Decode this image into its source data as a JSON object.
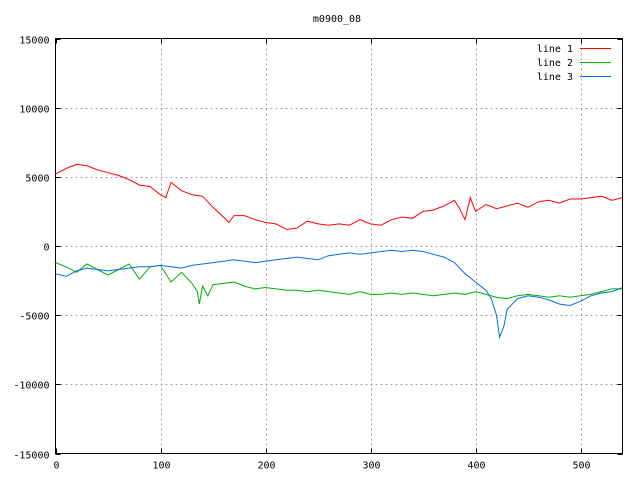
{
  "chart_data": {
    "type": "line",
    "title": "m0900_08",
    "xlabel": "",
    "ylabel": "",
    "xlim": [
      0,
      540
    ],
    "ylim": [
      -15000,
      15000
    ],
    "xticks": [
      0,
      100,
      200,
      300,
      400,
      500
    ],
    "yticks": [
      -15000,
      -10000,
      -5000,
      0,
      5000,
      10000,
      15000
    ],
    "grid": true,
    "legend_position": "top-right",
    "series": [
      {
        "name": "line 1",
        "color": "#ff0000",
        "x": [
          0,
          10,
          20,
          30,
          40,
          50,
          60,
          70,
          80,
          90,
          100,
          105,
          110,
          120,
          130,
          140,
          150,
          160,
          165,
          170,
          180,
          190,
          200,
          210,
          220,
          230,
          240,
          250,
          260,
          270,
          280,
          290,
          300,
          310,
          320,
          330,
          340,
          350,
          360,
          370,
          380,
          385,
          390,
          395,
          400,
          410,
          420,
          430,
          440,
          450,
          460,
          470,
          480,
          490,
          500,
          510,
          520,
          530,
          540
        ],
        "y": [
          5200,
          5600,
          5900,
          5800,
          5500,
          5300,
          5100,
          4800,
          4400,
          4300,
          3700,
          3500,
          4600,
          4000,
          3700,
          3600,
          2800,
          2100,
          1700,
          2200,
          2200,
          1900,
          1700,
          1600,
          1200,
          1300,
          1800,
          1600,
          1500,
          1600,
          1500,
          1900,
          1600,
          1500,
          1900,
          2100,
          2000,
          2500,
          2600,
          2900,
          3300,
          2700,
          1900,
          3500,
          2500,
          3000,
          2700,
          2900,
          3100,
          2800,
          3200,
          3300,
          3100,
          3400,
          3400,
          3500,
          3600,
          3300,
          3500
        ]
      },
      {
        "name": "line 2",
        "color": "#00b000",
        "x": [
          0,
          10,
          20,
          30,
          40,
          50,
          60,
          70,
          80,
          90,
          100,
          110,
          120,
          130,
          135,
          137,
          140,
          145,
          150,
          160,
          170,
          180,
          190,
          200,
          210,
          220,
          230,
          240,
          250,
          260,
          270,
          280,
          290,
          300,
          310,
          320,
          330,
          340,
          350,
          360,
          370,
          380,
          390,
          400,
          410,
          420,
          430,
          440,
          450,
          460,
          470,
          480,
          490,
          500,
          510,
          520,
          530,
          540
        ],
        "y": [
          -1200,
          -1500,
          -1900,
          -1300,
          -1700,
          -2100,
          -1700,
          -1300,
          -2400,
          -1500,
          -1400,
          -2600,
          -1900,
          -2700,
          -3300,
          -4200,
          -2900,
          -3600,
          -2800,
          -2700,
          -2600,
          -2900,
          -3100,
          -3000,
          -3100,
          -3200,
          -3200,
          -3300,
          -3200,
          -3300,
          -3400,
          -3500,
          -3300,
          -3500,
          -3500,
          -3400,
          -3500,
          -3400,
          -3500,
          -3600,
          -3500,
          -3400,
          -3500,
          -3300,
          -3500,
          -3700,
          -3800,
          -3600,
          -3500,
          -3600,
          -3700,
          -3600,
          -3700,
          -3600,
          -3500,
          -3300,
          -3100,
          -3100
        ]
      },
      {
        "name": "line 3",
        "color": "#0070e0",
        "x": [
          0,
          10,
          20,
          30,
          40,
          50,
          60,
          70,
          80,
          90,
          100,
          110,
          120,
          130,
          140,
          150,
          160,
          170,
          180,
          190,
          200,
          210,
          220,
          230,
          240,
          250,
          260,
          270,
          280,
          290,
          300,
          310,
          320,
          330,
          340,
          350,
          360,
          370,
          380,
          390,
          400,
          410,
          415,
          420,
          423,
          427,
          430,
          440,
          450,
          460,
          470,
          480,
          490,
          500,
          510,
          520,
          530,
          540
        ],
        "y": [
          -2000,
          -2200,
          -1800,
          -1600,
          -1700,
          -1800,
          -1700,
          -1600,
          -1500,
          -1500,
          -1400,
          -1500,
          -1600,
          -1400,
          -1300,
          -1200,
          -1100,
          -1000,
          -1100,
          -1200,
          -1100,
          -1000,
          -900,
          -800,
          -900,
          -1000,
          -700,
          -600,
          -500,
          -600,
          -500,
          -400,
          -300,
          -400,
          -300,
          -400,
          -600,
          -800,
          -1200,
          -2000,
          -2600,
          -3200,
          -3800,
          -5000,
          -6600,
          -5800,
          -4600,
          -3800,
          -3600,
          -3700,
          -3900,
          -4200,
          -4300,
          -4000,
          -3600,
          -3400,
          -3300,
          -3000
        ]
      }
    ]
  }
}
